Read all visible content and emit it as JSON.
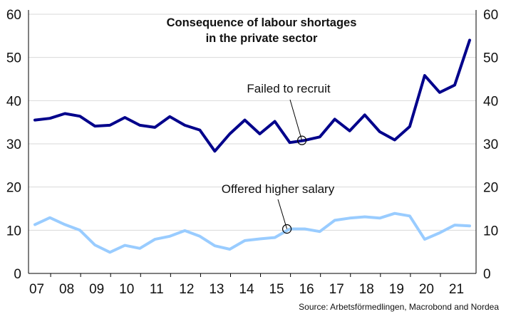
{
  "chart_data": {
    "type": "line",
    "title": [
      "Consequence of labour shortages",
      "in the private sector"
    ],
    "source": "Source: Arbetsförmedlingen, Macrobond and Nordea",
    "xlabel": "",
    "ylabel": "",
    "ylim": [
      0,
      60
    ],
    "y_ticks": [
      "0",
      "10",
      "20",
      "30",
      "40",
      "50",
      "60"
    ],
    "x_ticks": [
      "07",
      "08",
      "09",
      "10",
      "11",
      "12",
      "13",
      "14",
      "15",
      "16",
      "17",
      "18",
      "19",
      "20",
      "21"
    ],
    "x_range": [
      2007,
      2021.5
    ],
    "grid": "horizontal",
    "dual_y_axis": true,
    "x": [
      2007.0,
      2007.5,
      2008.0,
      2008.5,
      2009.0,
      2009.5,
      2010.0,
      2010.5,
      2011.0,
      2011.5,
      2012.0,
      2012.5,
      2013.0,
      2013.5,
      2014.0,
      2014.5,
      2015.0,
      2015.5,
      2016.0,
      2016.5,
      2017.0,
      2017.5,
      2018.0,
      2018.5,
      2019.0,
      2019.5,
      2020.0,
      2020.5,
      2021.0,
      2021.5
    ],
    "series": [
      {
        "name": "Failed to recruit",
        "color": "#00008b",
        "values": [
          35.5,
          35.9,
          37.0,
          36.4,
          34.1,
          34.3,
          36.1,
          34.3,
          33.8,
          36.3,
          34.3,
          33.2,
          28.3,
          32.3,
          35.5,
          32.3,
          35.2,
          30.3,
          30.8,
          31.6,
          35.7,
          33.0,
          36.7,
          32.8,
          30.9,
          34.0,
          45.8,
          41.9,
          43.6,
          54.0
        ]
      },
      {
        "name": "Offered higher salary",
        "color": "#99ccff",
        "values": [
          11.3,
          12.9,
          11.3,
          10.0,
          6.6,
          4.9,
          6.5,
          5.8,
          7.9,
          8.6,
          9.9,
          8.6,
          6.4,
          5.6,
          7.6,
          8.0,
          8.3,
          10.3,
          10.3,
          9.7,
          12.3,
          12.8,
          13.1,
          12.8,
          13.9,
          13.3,
          7.9,
          9.4,
          11.2,
          11.0
        ]
      }
    ],
    "annotations": [
      {
        "text": "Failed to recruit",
        "series": 0,
        "x": 2016.0,
        "y": 30.8
      },
      {
        "text": "Offered higher salary",
        "series": 1,
        "x": 2015.5,
        "y": 10.3
      }
    ]
  }
}
